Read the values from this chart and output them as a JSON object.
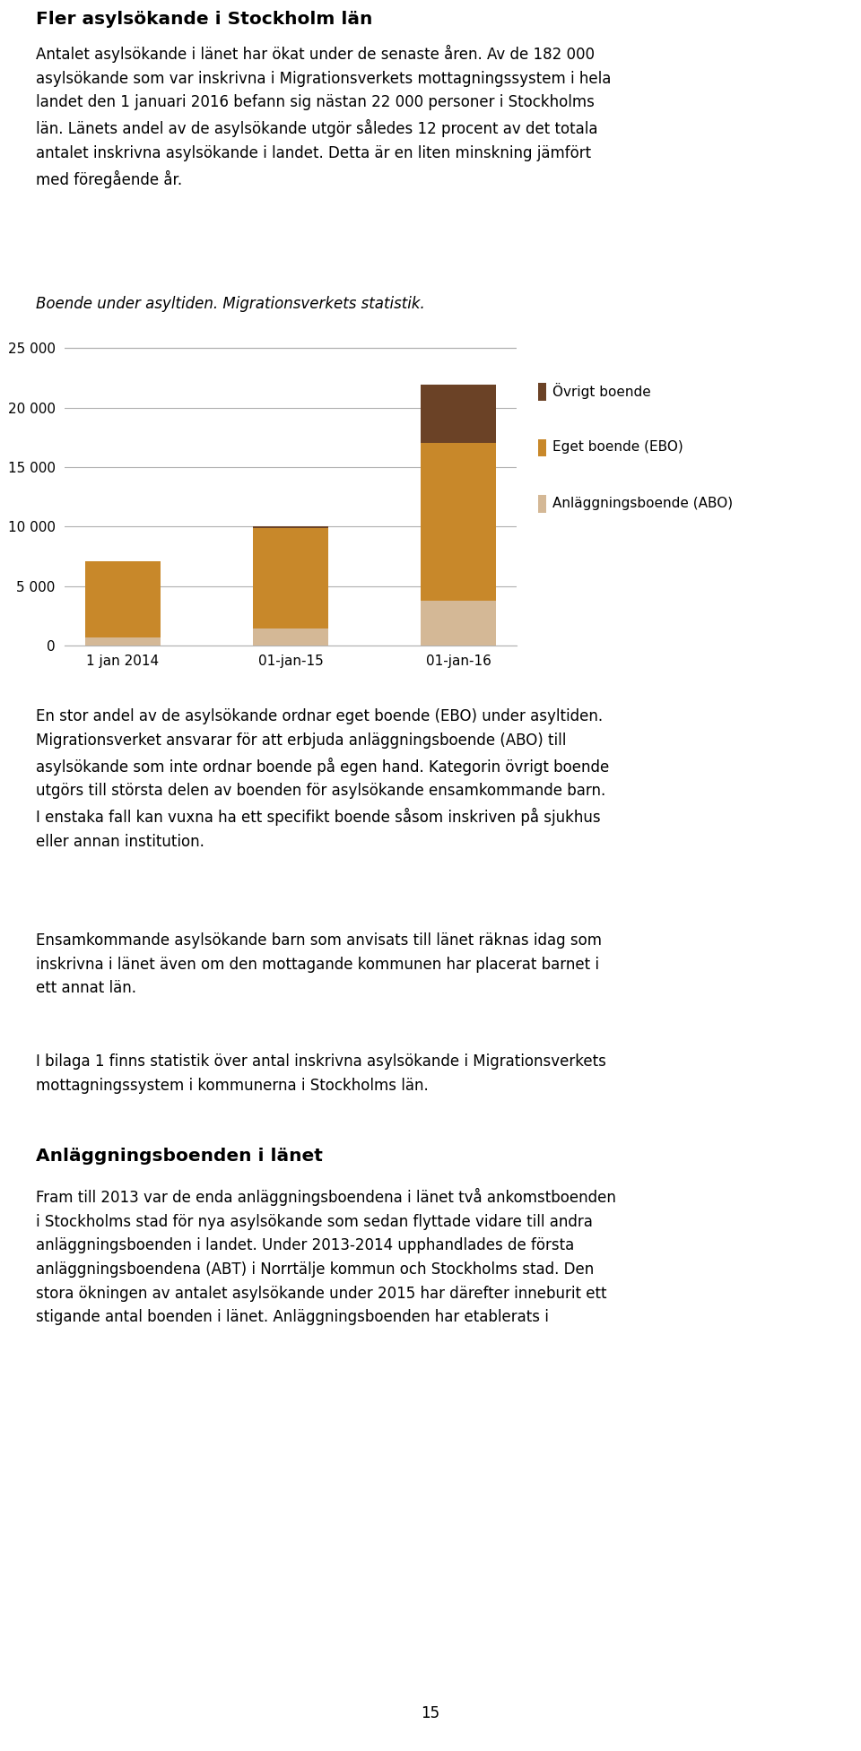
{
  "title_bold": "Fler asylsökande i Stockholm län",
  "categories": [
    "1 jan 2014",
    "01-jan-15",
    "01-jan-16"
  ],
  "abo_values": [
    650,
    1450,
    3750
  ],
  "ebo_values": [
    6450,
    8450,
    13300
  ],
  "ovrigt_values": [
    0,
    100,
    4900
  ],
  "color_abo": "#d4b896",
  "color_ebo": "#c8882a",
  "color_ovrigt": "#6b4226",
  "ylim": [
    0,
    26000
  ],
  "yticks": [
    0,
    5000,
    10000,
    15000,
    20000,
    25000
  ],
  "background_color": "#ffffff",
  "text_color": "#000000",
  "page_number": "15"
}
